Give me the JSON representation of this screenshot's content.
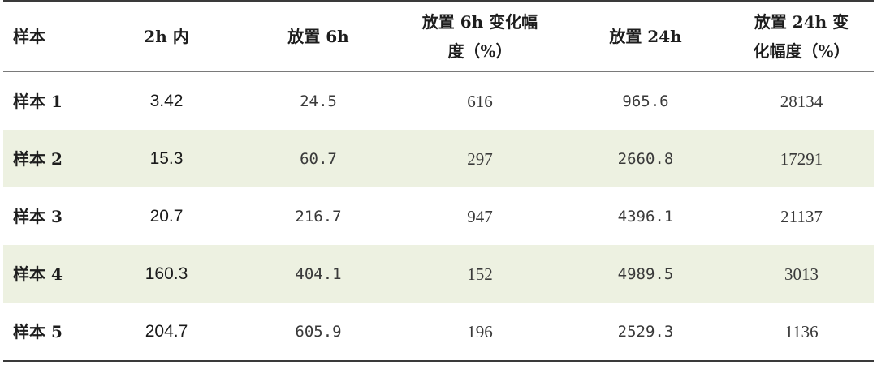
{
  "table": {
    "headers": [
      "样本",
      "2h 内",
      "放置 6h",
      "放置 6h 变化幅度（%）",
      "放置 24h",
      "放置 24h 变化幅度（%）"
    ],
    "rows": [
      [
        "样本 1",
        "3.42",
        "24.5",
        "616",
        "965.6",
        "28134"
      ],
      [
        "样本 2",
        "15.3",
        "60.7",
        "297",
        "2660.8",
        "17291"
      ],
      [
        "样本 3",
        "20.7",
        "216.7",
        "947",
        "4396.1",
        "21137"
      ],
      [
        "样本 4",
        "160.3",
        "404.1",
        "152",
        "4989.5",
        "3013"
      ],
      [
        "样本 5",
        "204.7",
        "605.9",
        "196",
        "2529.3",
        "1136"
      ]
    ],
    "shaded_row_color": "#edf1e1",
    "rule_color": "#3a3a3a"
  }
}
